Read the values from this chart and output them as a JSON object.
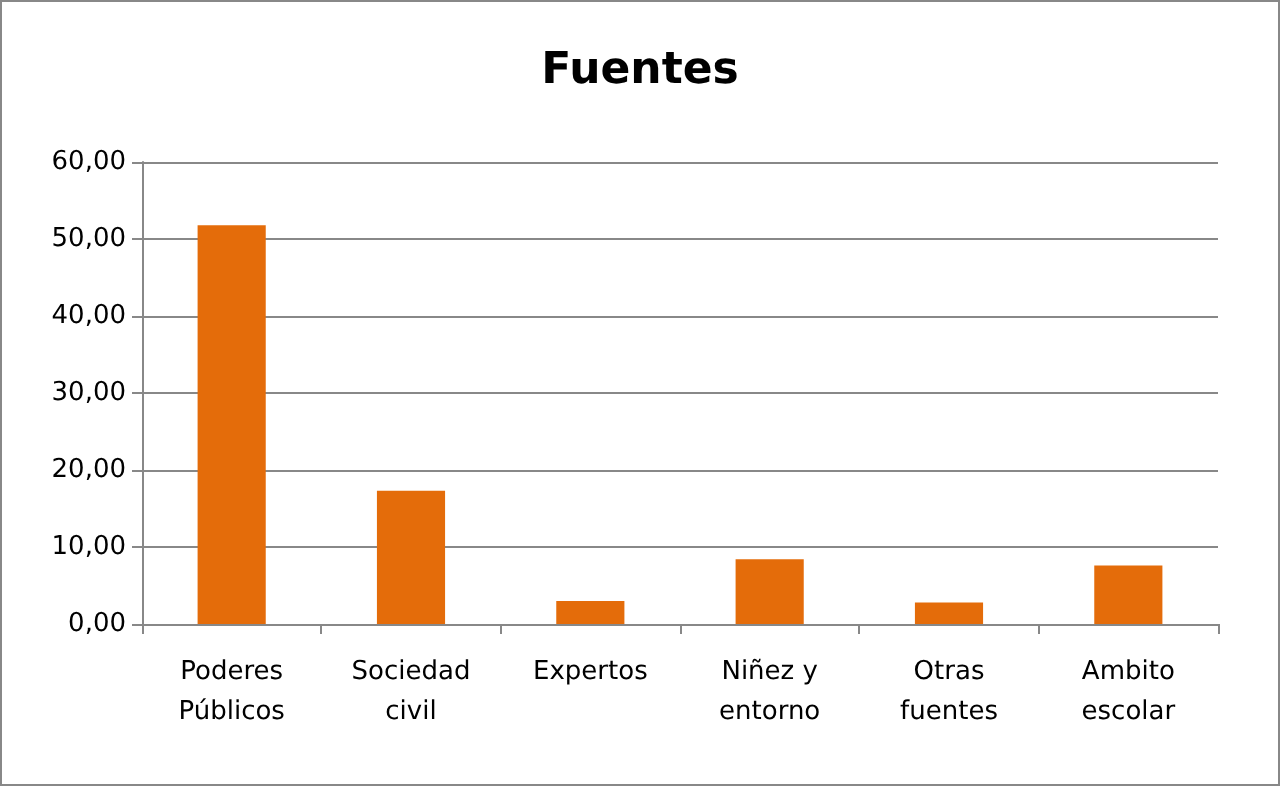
{
  "chart_data": {
    "type": "bar",
    "title": "Fuentes",
    "categories": [
      "Poderes\nPúblicos",
      "Sociedad\ncivil",
      "Expertos",
      "Niñez y\nentorno",
      "Otras\nfuentes",
      "Ambito\nescolar"
    ],
    "values": [
      51.8,
      17.3,
      3.0,
      8.4,
      2.8,
      7.6
    ],
    "color": "#e46c0a",
    "ylim": [
      0,
      60
    ],
    "yticks": [
      {
        "value": 0,
        "label": "0,00"
      },
      {
        "value": 10,
        "label": "10,00"
      },
      {
        "value": 20,
        "label": "20,00"
      },
      {
        "value": 30,
        "label": "30,00"
      },
      {
        "value": 40,
        "label": "40,00"
      },
      {
        "value": 50,
        "label": "50,00"
      },
      {
        "value": 60,
        "label": "60,00"
      }
    ],
    "grid": "y"
  }
}
